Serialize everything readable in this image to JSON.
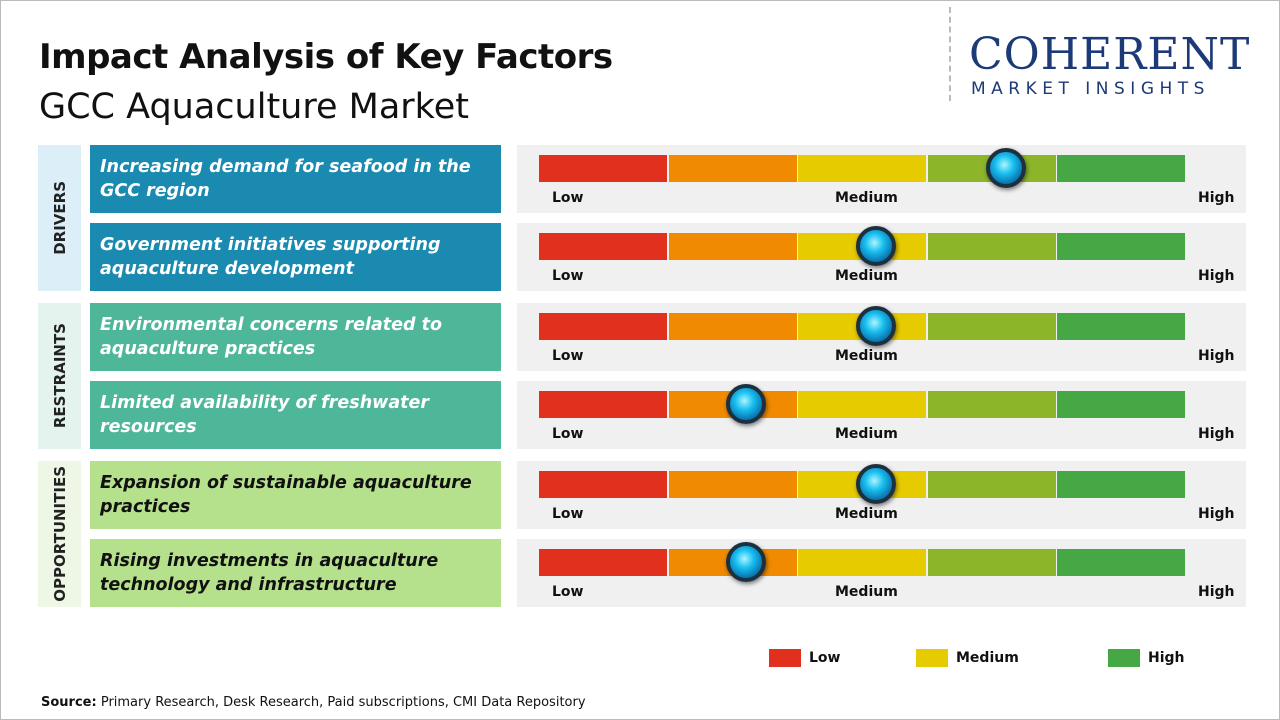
{
  "header": {
    "title": "Impact Analysis of Key Factors",
    "subtitle": "GCC Aquaculture Market"
  },
  "logo": {
    "name": "COHERENT",
    "tagline": "MARKET INSIGHTS"
  },
  "chart_data": {
    "type": "impact-scale",
    "xlim": [
      0,
      5
    ],
    "scale_labels": [
      "Low",
      "Medium",
      "High"
    ],
    "segment_colors": [
      "#e2301f",
      "#f08a00",
      "#e6cb00",
      "#8db52a",
      "#45a845"
    ],
    "groups": [
      {
        "name": "DRIVERS",
        "color": "#1a8ab0",
        "label_bg": "#dceff8",
        "text_color": "#ffffff",
        "factors": [
          {
            "label": "Increasing demand for seafood in the GCC region",
            "value": 3.6
          },
          {
            "label": "Government initiatives supporting aquaculture development",
            "value": 2.6
          }
        ]
      },
      {
        "name": "RESTRAINTS",
        "color": "#4fb799",
        "label_bg": "#e4f3ed",
        "text_color": "#ffffff",
        "factors": [
          {
            "label": "Environmental concerns related to aquaculture practices",
            "value": 2.6
          },
          {
            "label": "Limited availability of freshwater resources",
            "value": 1.6
          }
        ]
      },
      {
        "name": "OPPORTUNITIES",
        "color": "#b5e08c",
        "label_bg": "#eef7e5",
        "text_color": "#111111",
        "factors": [
          {
            "label": "Expansion of sustainable aquaculture practices",
            "value": 2.6
          },
          {
            "label": "Rising investments in aquaculture technology and infrastructure",
            "value": 1.6
          }
        ]
      }
    ]
  },
  "legend": [
    {
      "name": "Low",
      "color": "#e2301f"
    },
    {
      "name": "Medium",
      "color": "#e6cb00"
    },
    {
      "name": "High",
      "color": "#45a845"
    }
  ],
  "source": {
    "label": "Source:",
    "text": "Primary Research, Desk Research, Paid subscriptions, CMI Data Repository"
  }
}
